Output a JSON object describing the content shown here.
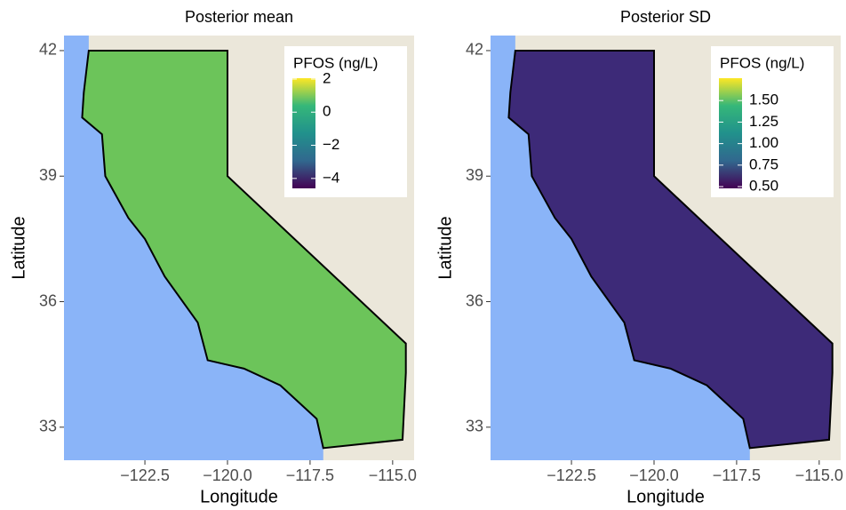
{
  "chart_data": [
    {
      "type": "heatmap",
      "title": "Posterior mean",
      "xlabel": "Longitude",
      "ylabel": "Latitude",
      "xlim": [
        -124.95,
        -114.35
      ],
      "ylim": [
        32.21,
        42.36
      ],
      "xticks": [
        {
          "value": -122.5,
          "label": "−122.5"
        },
        {
          "value": -120,
          "label": "−120.0"
        },
        {
          "value": -117.5,
          "label": "−117.5"
        },
        {
          "value": -115,
          "label": "−115.0"
        }
      ],
      "yticks": [
        33,
        36,
        39,
        42
      ],
      "colorbar_title": "PFOS (ng/L)",
      "clim": [
        -4.6,
        2.05
      ],
      "cticks": [
        {
          "value": -4,
          "label": "−4"
        },
        {
          "value": -2,
          "label": "−2"
        },
        0,
        2
      ],
      "colors": [
        "#440154",
        "#31688e",
        "#21918c",
        "#35b779",
        "#fde725"
      ],
      "fill": "#6cc45a"
    },
    {
      "type": "heatmap",
      "title": "Posterior SD",
      "xlabel": "Longitude",
      "ylabel": "Latitude",
      "xlim": [
        -124.95,
        -114.35
      ],
      "ylim": [
        32.21,
        42.36
      ],
      "xticks": [
        {
          "value": -122.5,
          "label": "−122.5"
        },
        {
          "value": -120,
          "label": "−120.0"
        },
        {
          "value": -117.5,
          "label": "−117.5"
        },
        {
          "value": -115,
          "label": "−115.0"
        }
      ],
      "yticks": [
        33,
        36,
        39,
        42
      ],
      "colorbar_title": "PFOS (ng/L)",
      "clim": [
        0.48,
        1.76
      ],
      "cticks": [
        {
          "value": 0.5,
          "label": "0.50"
        },
        {
          "value": 0.75,
          "label": "0.75"
        },
        {
          "value": 1,
          "label": "1.00"
        },
        {
          "value": 1.25,
          "label": "1.25"
        },
        {
          "value": 1.5,
          "label": "1.50"
        }
      ],
      "colors": [
        "#440154",
        "#31688e",
        "#21918c",
        "#35b779",
        "#fde725"
      ],
      "fill": "#3d2a78"
    }
  ]
}
